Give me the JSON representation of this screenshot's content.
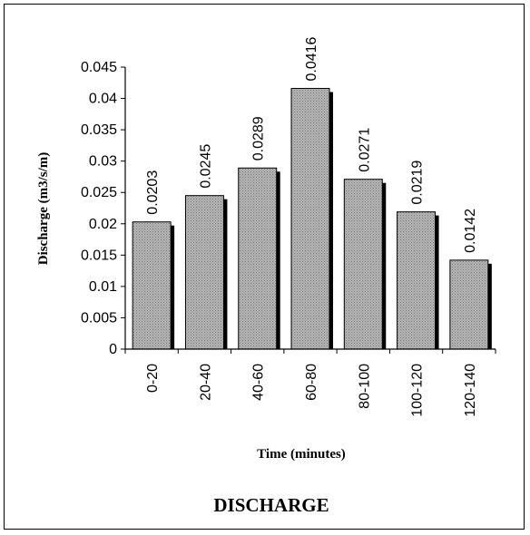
{
  "chart_data": {
    "type": "bar",
    "title": "DISCHARGE",
    "xlabel": "Time (minutes)",
    "ylabel": "Discharge (m3/s/m)",
    "categories": [
      "0-20",
      "20-40",
      "40-60",
      "60-80",
      "80-100",
      "100-120",
      "120-140"
    ],
    "values": [
      0.0203,
      0.0245,
      0.0289,
      0.0416,
      0.0271,
      0.0219,
      0.0142
    ],
    "data_labels": [
      "0.0203",
      "0.0245",
      "0.0289",
      "0.0416",
      "0.0271",
      "0.0219",
      "0.0142"
    ],
    "ylim": [
      0,
      0.045
    ],
    "yticks": [
      0,
      0.005,
      0.01,
      0.015,
      0.02,
      0.025,
      0.03,
      0.035,
      0.04,
      0.045
    ],
    "ytick_labels": [
      "0",
      "0.005",
      "0.01",
      "0.015",
      "0.02",
      "0.025",
      "0.03",
      "0.035",
      "0.04",
      "0.045"
    ],
    "grid": false,
    "legend": "none",
    "bar_fill": "#a8a8a8",
    "bar_shadow": "#000000"
  }
}
